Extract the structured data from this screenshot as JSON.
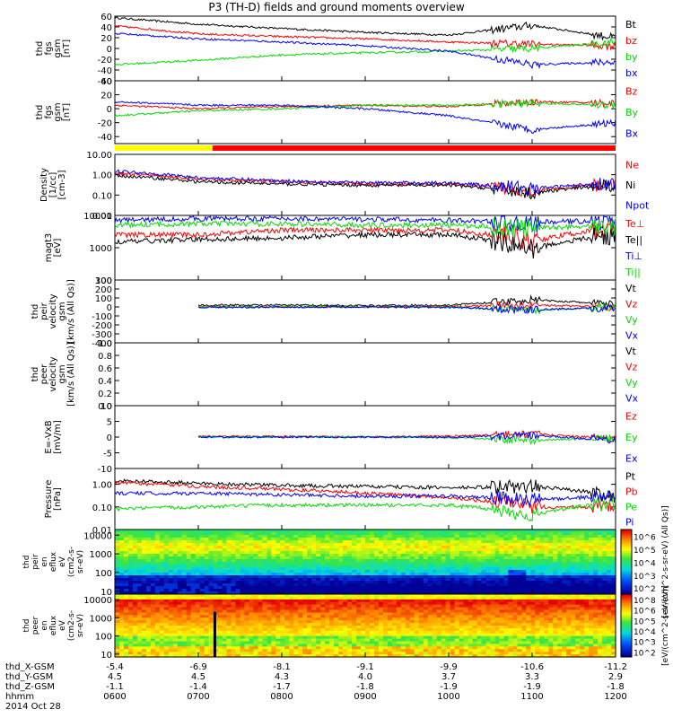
{
  "title": "P3 (TH-D) fields and ground moments overview",
  "time_axis": {
    "rows": [
      {
        "label": "thd_X-GSM",
        "values": [
          "-5.4",
          "-6.9",
          "-8.1",
          "-9.1",
          "-9.9",
          "-10.6",
          "-11.2"
        ]
      },
      {
        "label": "thd_Y-GSM",
        "values": [
          "4.5",
          "4.5",
          "4.3",
          "4.0",
          "3.7",
          "3.3",
          "2.9"
        ]
      },
      {
        "label": "thd_Z-GSM",
        "values": [
          "-1.1",
          "-1.4",
          "-1.7",
          "-1.8",
          "-1.9",
          "-1.9",
          "-1.8"
        ]
      },
      {
        "label": "hhmm",
        "values": [
          "0600",
          "0700",
          "0800",
          "0900",
          "1000",
          "1100",
          "1200"
        ]
      }
    ],
    "date": "2014 Oct 28"
  },
  "colors": {
    "black": "#000000",
    "red": "#ff0000",
    "green": "#00dd00",
    "blue": "#0000ff",
    "yellow": "#ffff00"
  },
  "chart_data": [
    {
      "type": "line",
      "ylabel": [
        "thd",
        "fgs",
        "gsm",
        "[nT]"
      ],
      "ylim": [
        -60,
        60
      ],
      "yticks": [
        "60",
        "40",
        "20",
        "0",
        "-20",
        "-40",
        "-60"
      ],
      "legend": [
        "Bt",
        "bz",
        "by",
        "bx"
      ],
      "x": [
        "0600",
        "0700",
        "0800",
        "0900",
        "1000",
        "1100",
        "1200"
      ],
      "series": [
        {
          "name": "Bt",
          "values": [
            57,
            45,
            37,
            30,
            25,
            43,
            20
          ]
        },
        {
          "name": "bz",
          "values": [
            42,
            27,
            22,
            18,
            12,
            8,
            5
          ]
        },
        {
          "name": "by",
          "values": [
            -30,
            -22,
            -12,
            -8,
            -5,
            0,
            12
          ]
        },
        {
          "name": "bx",
          "values": [
            28,
            18,
            12,
            5,
            -5,
            -30,
            -25
          ]
        }
      ]
    },
    {
      "type": "line",
      "ylabel": [
        "thd",
        "fgs",
        "gsm",
        "[nT]"
      ],
      "ylim": [
        -50,
        40
      ],
      "yticks": [
        "40",
        "20",
        "0",
        "-20",
        "-40"
      ],
      "legend": [
        "Bz",
        "By",
        "Bx"
      ],
      "x": [
        "0600",
        "0700",
        "0800",
        "0900",
        "1000",
        "1100",
        "1200"
      ],
      "series": [
        {
          "name": "Bz",
          "values": [
            5,
            0,
            3,
            5,
            3,
            10,
            8
          ]
        },
        {
          "name": "By",
          "values": [
            -10,
            -3,
            0,
            5,
            5,
            8,
            5
          ]
        },
        {
          "name": "Bx",
          "values": [
            10,
            5,
            5,
            0,
            -10,
            -30,
            -20
          ]
        }
      ]
    },
    {
      "type": "line",
      "ylabel": [
        "Density",
        "[1/cc]",
        "[cm-3]"
      ],
      "ylim": [
        0.01,
        10
      ],
      "log": true,
      "yticks": [
        "10.00",
        "1.00",
        "0.10",
        "0.01"
      ],
      "legend": [
        "Ne",
        "Ni",
        "Npot"
      ],
      "x": [
        "0600",
        "0700",
        "0800",
        "0900",
        "1000",
        "1100",
        "1200"
      ],
      "series": [
        {
          "name": "Ne",
          "values": [
            1.2,
            0.6,
            0.45,
            0.35,
            0.35,
            0.15,
            0.35
          ]
        },
        {
          "name": "Ni",
          "values": [
            0.9,
            0.45,
            0.35,
            0.3,
            0.3,
            0.12,
            0.3
          ]
        },
        {
          "name": "Npot",
          "values": [
            1.5,
            0.7,
            0.5,
            0.4,
            0.4,
            0.2,
            0.4
          ]
        }
      ]
    },
    {
      "type": "line",
      "ylabel": [
        "magt3",
        "[eV]"
      ],
      "ylim": [
        100,
        10000
      ],
      "log": true,
      "yticks": [
        "10000",
        "1000",
        "100"
      ],
      "legend": [
        "Te⊥",
        "Te||",
        "Ti⊥",
        "Ti||"
      ],
      "x": [
        "0600",
        "0700",
        "0800",
        "0900",
        "1000",
        "1100",
        "1200"
      ],
      "series": [
        {
          "name": "Te⊥",
          "values": [
            2500,
            2500,
            3500,
            3500,
            3500,
            1500,
            4000
          ]
        },
        {
          "name": "Te||",
          "values": [
            1500,
            1800,
            2000,
            2500,
            2500,
            900,
            2500
          ]
        },
        {
          "name": "Ti⊥",
          "values": [
            7000,
            8000,
            8000,
            7500,
            7000,
            6000,
            7000
          ]
        },
        {
          "name": "Ti||",
          "values": [
            5000,
            5500,
            5500,
            5000,
            5000,
            4000,
            5000
          ]
        }
      ]
    },
    {
      "type": "line",
      "ylabel": [
        "thd",
        "peir",
        "velocity",
        "gsm",
        "[km/s (All Qs)]"
      ],
      "ylim": [
        -400,
        300
      ],
      "yticks": [
        "300",
        "200",
        "100",
        "0",
        "-100",
        "-200",
        "-300",
        "-400"
      ],
      "legend": [
        "Vt",
        "Vz",
        "Vy",
        "Vx"
      ],
      "x": [
        "0600",
        "0700",
        "0800",
        "0900",
        "1000",
        "1100",
        "1200"
      ],
      "series": [
        {
          "name": "Vt",
          "values": [
            null,
            20,
            20,
            15,
            20,
            80,
            30
          ]
        },
        {
          "name": "Vz",
          "values": [
            null,
            0,
            0,
            0,
            5,
            20,
            0
          ]
        },
        {
          "name": "Vy",
          "values": [
            null,
            0,
            0,
            0,
            0,
            -40,
            0
          ]
        },
        {
          "name": "Vx",
          "values": [
            null,
            -5,
            0,
            0,
            -5,
            -30,
            -10
          ]
        }
      ]
    },
    {
      "type": "line",
      "ylabel": [
        "thd",
        "peer",
        "velocity",
        "gsm",
        "[km/s (All Qs)]"
      ],
      "ylim": [
        0,
        1
      ],
      "yticks": [
        "1.0",
        "0.8",
        "0.6",
        "0.4",
        "0.2",
        "0.0"
      ],
      "legend": [
        "Vt",
        "Vz",
        "Vy",
        "Vx"
      ],
      "x": [],
      "series": []
    },
    {
      "type": "line",
      "ylabel": [
        "E=-VxB",
        "[mV/m]"
      ],
      "ylim": [
        -10,
        10
      ],
      "yticks": [
        "10",
        "5",
        "0",
        "-5",
        "-10"
      ],
      "legend": [
        "Ez",
        "Ey",
        "Ex"
      ],
      "x": [
        "0600",
        "0700",
        "0800",
        "0900",
        "1000",
        "1100",
        "1200"
      ],
      "series": [
        {
          "name": "Ez",
          "values": [
            null,
            0.3,
            0.2,
            0,
            0.3,
            1,
            -0.5
          ]
        },
        {
          "name": "Ey",
          "values": [
            null,
            0,
            0,
            0,
            -0.2,
            -1,
            -0.3
          ]
        },
        {
          "name": "Ex",
          "values": [
            null,
            0,
            0,
            0,
            0,
            0.5,
            -1
          ]
        }
      ]
    },
    {
      "type": "line",
      "ylabel": [
        "Pressure",
        "[nPa]"
      ],
      "ylim": [
        0.01,
        5
      ],
      "log": true,
      "yticks": [
        "1.00",
        "0.10",
        "0.01"
      ],
      "legend": [
        "Pt",
        "Pb",
        "Pe",
        "Pi"
      ],
      "x": [
        "0600",
        "0700",
        "0800",
        "0900",
        "1000",
        "1100",
        "1200"
      ],
      "series": [
        {
          "name": "Pt",
          "values": [
            1.5,
            1.1,
            0.9,
            0.8,
            0.7,
            0.8,
            0.3
          ]
        },
        {
          "name": "Pb",
          "values": [
            1.2,
            0.8,
            0.6,
            0.4,
            0.25,
            0.1,
            0.1
          ]
        },
        {
          "name": "Pe",
          "values": [
            0.08,
            0.1,
            0.12,
            0.12,
            0.12,
            0.04,
            0.15
          ]
        },
        {
          "name": "Pi",
          "values": [
            0.4,
            0.4,
            0.35,
            0.3,
            0.3,
            0.2,
            0.3
          ]
        }
      ]
    },
    {
      "type": "heatmap",
      "ylabel": [
        "thd",
        "peir",
        "en",
        "eflux",
        "eV",
        "(cm2-s-",
        "sr-eV)"
      ],
      "ylim": [
        7,
        20000
      ],
      "log": true,
      "yticks": [
        "10000",
        "1000",
        "100",
        "10"
      ],
      "colorbar_label": "[eV/(cm^2-s-sr-eV) (All Qs)]",
      "colorbar_ticks": [
        "10^6",
        "10^5",
        "10^4",
        "10^3",
        "10^2"
      ]
    },
    {
      "type": "heatmap",
      "ylabel": [
        "thd",
        "peer",
        "en",
        "eflux",
        "eV",
        "(cm2-s-",
        "sr-eV)"
      ],
      "ylim": [
        7,
        20000
      ],
      "log": true,
      "yticks": [
        "10000",
        "1000",
        "100",
        "10"
      ],
      "colorbar_label": "[eV/(cm^2-s-sr-eV)]",
      "colorbar_ticks": [
        "10^8",
        "10^6",
        "10^5",
        "10^4",
        "10^3",
        "10^2"
      ]
    }
  ]
}
